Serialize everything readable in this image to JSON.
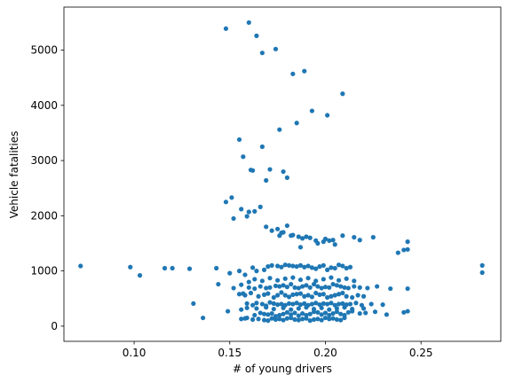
{
  "chart_data": {
    "type": "scatter",
    "title": "",
    "xlabel": "# of young drivers",
    "ylabel": "Vehicle fatalities",
    "xlim": [
      0.0633,
      0.2917
    ],
    "ylim": [
      -275,
      5780
    ],
    "xticks": [
      0.1,
      0.15,
      0.2,
      0.25
    ],
    "xtick_labels": [
      "0.10",
      "0.15",
      "0.20",
      "0.25"
    ],
    "yticks": [
      0,
      1000,
      2000,
      3000,
      4000,
      5000
    ],
    "ytick_labels": [
      "0",
      "1000",
      "2000",
      "3000",
      "4000",
      "5000"
    ],
    "grid": false,
    "legend": "none",
    "color": "#1f77b4",
    "series": [
      {
        "x": [
          0.16,
          0.148,
          0.164,
          0.167,
          0.174,
          0.189,
          0.183,
          0.209,
          0.193,
          0.201,
          0.185,
          0.176,
          0.155,
          0.157,
          0.167,
          0.161,
          0.162,
          0.171,
          0.178,
          0.18,
          0.169,
          0.151,
          0.148,
          0.166,
          0.163,
          0.16,
          0.156,
          0.152,
          0.159,
          0.169,
          0.175,
          0.172,
          0.176,
          0.177,
          0.178,
          0.183,
          0.18,
          0.186,
          0.182,
          0.19,
          0.188,
          0.192,
          0.195,
          0.2,
          0.204,
          0.199,
          0.205,
          0.209,
          0.187,
          0.196,
          0.202,
          0.215,
          0.218,
          0.225,
          0.243,
          0.243,
          0.238,
          0.241,
          0.282,
          0.282,
          0.072,
          0.098,
          0.103,
          0.116,
          0.12,
          0.129,
          0.143,
          0.15,
          0.155,
          0.158,
          0.162,
          0.164,
          0.168,
          0.17,
          0.172,
          0.175,
          0.177,
          0.179,
          0.181,
          0.183,
          0.185,
          0.187,
          0.189,
          0.191,
          0.193,
          0.195,
          0.197,
          0.199,
          0.201,
          0.203,
          0.205,
          0.207,
          0.209,
          0.211,
          0.213,
          0.144,
          0.152,
          0.156,
          0.16,
          0.163,
          0.166,
          0.169,
          0.171,
          0.174,
          0.176,
          0.178,
          0.18,
          0.182,
          0.184,
          0.186,
          0.188,
          0.19,
          0.192,
          0.194,
          0.196,
          0.198,
          0.2,
          0.202,
          0.204,
          0.206,
          0.208,
          0.21,
          0.212,
          0.215,
          0.218,
          0.222,
          0.227,
          0.234,
          0.243,
          0.155,
          0.158,
          0.161,
          0.165,
          0.168,
          0.17,
          0.173,
          0.175,
          0.177,
          0.179,
          0.181,
          0.183,
          0.185,
          0.187,
          0.189,
          0.191,
          0.193,
          0.195,
          0.197,
          0.199,
          0.201,
          0.203,
          0.205,
          0.207,
          0.209,
          0.211,
          0.214,
          0.217,
          0.22,
          0.157,
          0.159,
          0.162,
          0.164,
          0.167,
          0.169,
          0.171,
          0.173,
          0.175,
          0.177,
          0.179,
          0.181,
          0.183,
          0.185,
          0.187,
          0.189,
          0.191,
          0.193,
          0.195,
          0.197,
          0.199,
          0.201,
          0.203,
          0.205,
          0.207,
          0.209,
          0.211,
          0.213,
          0.216,
          0.219,
          0.224,
          0.23,
          0.131,
          0.136,
          0.149,
          0.156,
          0.159,
          0.163,
          0.166,
          0.168,
          0.17,
          0.172,
          0.174,
          0.176,
          0.178,
          0.18,
          0.182,
          0.184,
          0.186,
          0.188,
          0.19,
          0.192,
          0.194,
          0.196,
          0.198,
          0.2,
          0.202,
          0.204,
          0.206,
          0.208,
          0.21,
          0.212,
          0.214,
          0.218,
          0.221,
          0.226,
          0.232,
          0.241,
          0.243,
          0.158,
          0.162,
          0.165,
          0.168,
          0.17,
          0.172,
          0.174,
          0.176,
          0.178,
          0.18,
          0.182,
          0.184,
          0.186,
          0.188,
          0.19,
          0.192,
          0.194,
          0.196,
          0.198,
          0.2,
          0.202,
          0.204,
          0.206,
          0.208,
          0.21,
          0.16,
          0.163,
          0.167,
          0.171,
          0.175,
          0.179,
          0.183,
          0.187,
          0.191,
          0.195,
          0.199,
          0.203,
          0.207,
          0.211,
          0.215,
          0.156,
          0.159,
          0.164,
          0.169,
          0.173,
          0.178,
          0.182,
          0.186,
          0.19,
          0.194,
          0.198,
          0.202,
          0.206,
          0.21,
          0.214,
          0.22
        ],
        "y": [
          5500,
          5390,
          5260,
          4950,
          5020,
          4620,
          4570,
          4210,
          3900,
          3820,
          3680,
          3560,
          3380,
          3070,
          3250,
          2830,
          2820,
          2840,
          2800,
          2690,
          2640,
          2330,
          2250,
          2160,
          2080,
          2070,
          2120,
          1950,
          1990,
          1800,
          1760,
          1730,
          1640,
          1690,
          1700,
          1650,
          1820,
          1620,
          1640,
          1620,
          1590,
          1600,
          1550,
          1580,
          1560,
          1530,
          1480,
          1640,
          1430,
          1500,
          1550,
          1610,
          1560,
          1610,
          1530,
          1390,
          1330,
          1380,
          1100,
          970,
          1090,
          1070,
          920,
          1050,
          1050,
          1040,
          1050,
          960,
          1000,
          930,
          1060,
          1000,
          1020,
          1080,
          1100,
          1090,
          1070,
          1110,
          1100,
          1090,
          1080,
          1100,
          1070,
          1090,
          1060,
          1040,
          1080,
          1100,
          1020,
          1060,
          1050,
          1110,
          1090,
          1050,
          1070,
          760,
          690,
          750,
          700,
          680,
          720,
          690,
          700,
          730,
          720,
          740,
          710,
          760,
          700,
          690,
          720,
          740,
          700,
          760,
          720,
          690,
          710,
          700,
          760,
          740,
          720,
          700,
          690,
          720,
          700,
          690,
          720,
          680,
          680,
          580,
          560,
          600,
          540,
          570,
          590,
          520,
          560,
          610,
          560,
          530,
          570,
          580,
          590,
          540,
          560,
          530,
          600,
          570,
          580,
          520,
          540,
          560,
          580,
          600,
          540,
          520,
          560,
          540,
          590,
          410,
          380,
          420,
          400,
          370,
          430,
          410,
          390,
          400,
          380,
          410,
          400,
          420,
          390,
          410,
          380,
          400,
          420,
          390,
          410,
          400,
          420,
          380,
          400,
          410,
          390,
          400,
          420,
          380,
          400,
          390,
          410,
          150,
          270,
          130,
          150,
          200,
          240,
          220,
          210,
          230,
          180,
          200,
          220,
          250,
          210,
          240,
          190,
          230,
          200,
          220,
          260,
          250,
          210,
          240,
          200,
          230,
          260,
          220,
          200,
          250,
          270,
          230,
          240,
          260,
          210,
          250,
          270,
          140,
          120,
          130,
          110,
          100,
          140,
          120,
          130,
          110,
          140,
          150,
          120,
          110,
          130,
          140,
          100,
          120,
          130,
          110,
          150,
          130,
          140,
          120,
          110,
          150,
          800,
          850,
          820,
          870,
          830,
          860,
          880,
          840,
          870,
          820,
          850,
          880,
          830,
          860,
          820,
          300,
          330,
          320,
          340,
          310,
          330,
          300,
          320,
          340,
          310,
          330,
          300,
          320,
          340,
          310,
          320
        ]
      }
    ]
  }
}
